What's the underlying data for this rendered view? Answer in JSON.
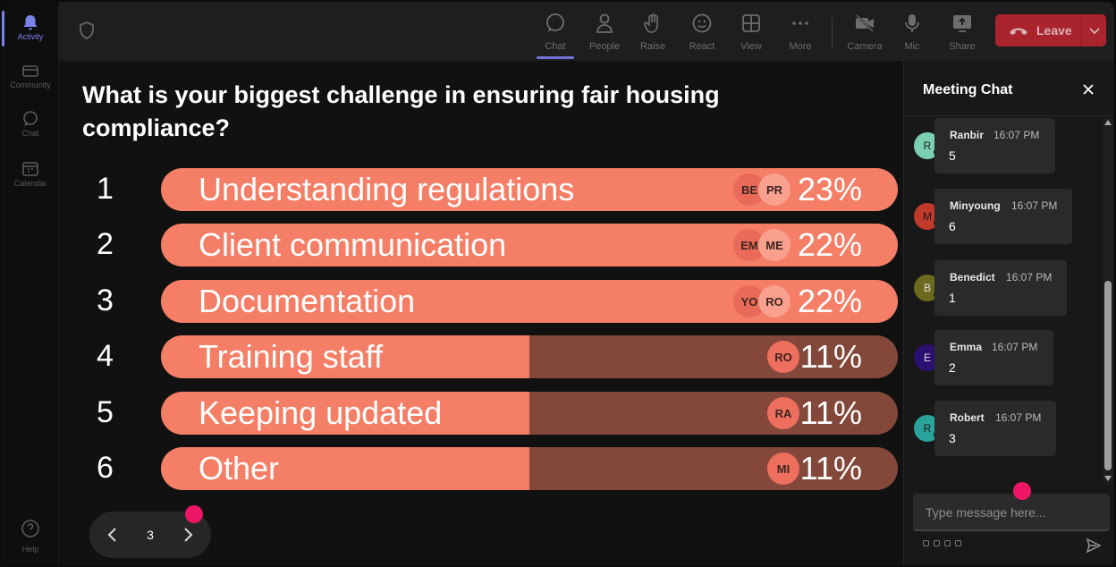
{
  "rail": {
    "items": [
      {
        "label": "Activity",
        "icon": "bell-icon",
        "active": true
      },
      {
        "label": "Community",
        "icon": "community-icon",
        "active": false
      },
      {
        "label": "Chat",
        "icon": "chat-icon",
        "active": false
      },
      {
        "label": "Calendar",
        "icon": "calendar-icon",
        "active": false
      }
    ],
    "help_label": "Help"
  },
  "toolbar": {
    "buttons": [
      {
        "label": "Chat",
        "icon": "chat-icon",
        "active": true
      },
      {
        "label": "People",
        "icon": "people-icon"
      },
      {
        "label": "Raise",
        "icon": "raise-hand-icon"
      },
      {
        "label": "React",
        "icon": "react-icon"
      },
      {
        "label": "View",
        "icon": "view-grid-icon"
      },
      {
        "label": "More",
        "icon": "more-icon"
      },
      {
        "label": "Camera",
        "icon": "camera-off-icon"
      },
      {
        "label": "Mic",
        "icon": "mic-icon"
      },
      {
        "label": "Share",
        "icon": "share-icon"
      }
    ],
    "leave_label": "Leave"
  },
  "poll": {
    "question": "What is your biggest challenge in ensuring fair housing compliance?",
    "options": [
      {
        "num": "1",
        "label": "Understanding regulations",
        "percent": "23%",
        "fill": 1.0,
        "avatars": [
          "BE",
          "PR"
        ]
      },
      {
        "num": "2",
        "label": "Client communication",
        "percent": "22%",
        "fill": 1.0,
        "avatars": [
          "EM",
          "ME"
        ]
      },
      {
        "num": "3",
        "label": "Documentation",
        "percent": "22%",
        "fill": 1.0,
        "avatars": [
          "YO",
          "RO"
        ]
      },
      {
        "num": "4",
        "label": "Training staff",
        "percent": "11%",
        "fill": 0.5,
        "avatars": [
          "RO"
        ]
      },
      {
        "num": "5",
        "label": "Keeping updated",
        "percent": "11%",
        "fill": 0.5,
        "avatars": [
          "RA"
        ]
      },
      {
        "num": "6",
        "label": "Other",
        "percent": "11%",
        "fill": 0.5,
        "avatars": [
          "MI"
        ]
      }
    ],
    "page": "3"
  },
  "chat": {
    "title": "Meeting Chat",
    "messages": [
      {
        "initial": "R",
        "name": "Ranbir",
        "time": "16:07 PM",
        "text": "5",
        "color": "#7ccfb0"
      },
      {
        "initial": "M",
        "name": "Minyoung",
        "time": "16:07 PM",
        "text": "6",
        "color": "#c0392b"
      },
      {
        "initial": "B",
        "name": "Benedict",
        "time": "16:07 PM",
        "text": "1",
        "color": "#6b6a1e"
      },
      {
        "initial": "E",
        "name": "Emma",
        "time": "16:07 PM",
        "text": "2",
        "color": "#2a1070"
      },
      {
        "initial": "R",
        "name": "Robert",
        "time": "16:07 PM",
        "text": "3",
        "color": "#2aa39a"
      }
    ],
    "compose_placeholder": "Type message here..."
  }
}
